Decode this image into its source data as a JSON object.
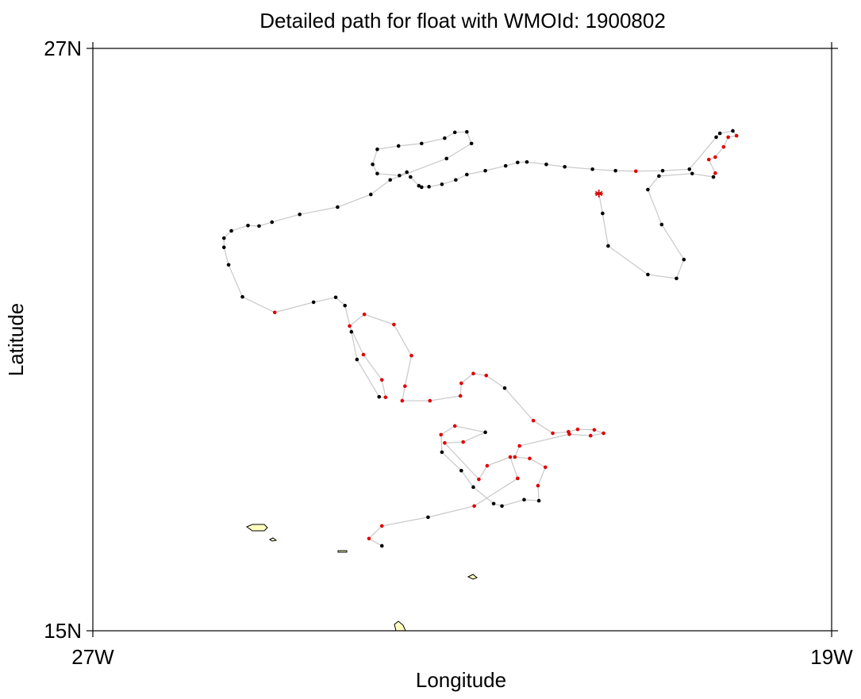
{
  "chart_data": {
    "type": "line",
    "title": "Detailed path for float with WMOId: 1900802",
    "x_label": "Longitude",
    "y_label": "Latitude",
    "xlim": [
      -27,
      -19
    ],
    "ylim": [
      15,
      27
    ],
    "xticks": [
      {
        "value": -27,
        "label": "27W"
      },
      {
        "value": -19,
        "label": "19W"
      }
    ],
    "yticks": [
      {
        "value": 15,
        "label": "15N"
      },
      {
        "value": 27,
        "label": "27N"
      }
    ],
    "line_color": "#c8c8c8",
    "x": [
      -21.52,
      -21.48,
      -21.42,
      -20.99,
      -20.68,
      -20.6,
      -20.84,
      -20.99,
      -20.87,
      -20.51,
      -20.28,
      -20.26,
      -20.33,
      -20.26,
      -20.17,
      -20.12,
      -20.03,
      -20.07,
      -20.21,
      -20.25,
      -20.54,
      -20.83,
      -21.12,
      -21.34,
      -21.59,
      -21.89,
      -22.09,
      -22.3,
      -22.4,
      -22.53,
      -22.75,
      -22.95,
      -23.07,
      -23.22,
      -23.36,
      -23.44,
      -23.47,
      -23.56,
      -23.6,
      -23.68,
      -23.92,
      -23.97,
      -23.92,
      -23.69,
      -23.44,
      -23.19,
      -23.08,
      -22.95,
      -22.9,
      -23.17,
      -23.78,
      -23.99,
      -24.35,
      -24.76,
      -25.06,
      -25.2,
      -25.32,
      -25.5,
      -25.58,
      -25.58,
      -25.53,
      -25.38,
      -25.03,
      -24.61,
      -24.37,
      -24.27,
      -24.2,
      -24.14,
      -23.9,
      -23.83,
      -23.87,
      -24.07,
      -24.22,
      -24.06,
      -23.74,
      -23.55,
      -23.62,
      -23.65,
      -23.35,
      -23.02,
      -23.01,
      -22.88,
      -22.74,
      -22.54,
      -22.23,
      -22.02,
      -21.85,
      -21.75,
      -21.57,
      -21.47,
      -21.61,
      -21.84,
      -22.38,
      -22.43,
      -22.27,
      -22.1,
      -22.18,
      -22.17,
      -22.33,
      -22.57,
      -22.66,
      -22.88,
      -23.01,
      -23.22,
      -23.23,
      -23.08,
      -22.75,
      -22.99,
      -23.19,
      -22.82,
      -22.73,
      -22.48,
      -22.4,
      -22.87,
      -23.37,
      -23.87,
      -24.01,
      -23.87
    ],
    "y": [
      24.01,
      23.6,
      22.93,
      22.34,
      22.26,
      22.65,
      23.37,
      24.09,
      24.37,
      24.42,
      24.35,
      24.43,
      24.71,
      24.76,
      24.97,
      25.17,
      25.2,
      25.3,
      25.25,
      25.17,
      24.51,
      24.48,
      24.47,
      24.48,
      24.51,
      24.56,
      24.61,
      24.66,
      24.65,
      24.58,
      24.48,
      24.4,
      24.29,
      24.2,
      24.15,
      24.14,
      24.17,
      24.35,
      24.45,
      24.38,
      24.42,
      24.61,
      24.92,
      24.99,
      25.04,
      25.15,
      25.27,
      25.28,
      25.04,
      24.73,
      24.29,
      23.99,
      23.73,
      23.58,
      23.42,
      23.34,
      23.35,
      23.24,
      23.09,
      22.9,
      22.54,
      21.88,
      21.56,
      21.77,
      21.87,
      21.7,
      21.16,
      20.59,
      19.82,
      19.81,
      20.17,
      20.69,
      21.28,
      21.52,
      21.31,
      20.67,
      20.04,
      19.74,
      19.74,
      19.84,
      20.1,
      20.3,
      20.26,
      20.0,
      19.33,
      19.07,
      19.1,
      19.15,
      19.14,
      19.07,
      19.02,
      19.05,
      18.81,
      18.58,
      18.55,
      18.37,
      17.99,
      17.68,
      17.7,
      17.57,
      17.62,
      17.96,
      18.3,
      18.68,
      19.04,
      19.22,
      19.09,
      18.89,
      18.87,
      18.12,
      18.4,
      18.58,
      18.14,
      17.57,
      17.34,
      17.16,
      16.9,
      16.75
    ],
    "colors": [
      "#d40000",
      "#000000",
      "#000000",
      "#000000",
      "#000000",
      "#000000",
      "#000000",
      "#000000",
      "#000000",
      "#000000",
      "#000000",
      "#e00000",
      "#e00000",
      "#e00000",
      "#e00000",
      "#e00000",
      "#e00000",
      "#000000",
      "#000000",
      "#000000",
      "#000000",
      "#000000",
      "#e00000",
      "#000000",
      "#000000",
      "#000000",
      "#000000",
      "#000000",
      "#000000",
      "#000000",
      "#000000",
      "#000000",
      "#000000",
      "#000000",
      "#000000",
      "#000000",
      "#000000",
      "#000000",
      "#000000",
      "#000000",
      "#000000",
      "#000000",
      "#000000",
      "#000000",
      "#000000",
      "#000000",
      "#000000",
      "#000000",
      "#000000",
      "#000000",
      "#000000",
      "#000000",
      "#000000",
      "#000000",
      "#000000",
      "#000000",
      "#000000",
      "#000000",
      "#000000",
      "#000000",
      "#000000",
      "#000000",
      "#e00000",
      "#000000",
      "#000000",
      "#000000",
      "#000000",
      "#000000",
      "#000000",
      "#e00000",
      "#e00000",
      "#e00000",
      "#e00000",
      "#e00000",
      "#e00000",
      "#e00000",
      "#e00000",
      "#e00000",
      "#e00000",
      "#e00000",
      "#e00000",
      "#e00000",
      "#e00000",
      "#000000",
      "#e00000",
      "#e00000",
      "#e00000",
      "#e00000",
      "#e00000",
      "#e00000",
      "#e00000",
      "#e00000",
      "#e00000",
      "#e00000",
      "#e00000",
      "#e00000",
      "#e00000",
      "#000000",
      "#000000",
      "#000000",
      "#000000",
      "#000000",
      "#000000",
      "#000000",
      "#e00000",
      "#e00000",
      "#000000",
      "#e00000",
      "#e00000",
      "#e00000",
      "#e00000",
      "#e00000",
      "#e00000",
      "#e00000",
      "#000000",
      "#e00000",
      "#e00000",
      "#000000"
    ]
  }
}
